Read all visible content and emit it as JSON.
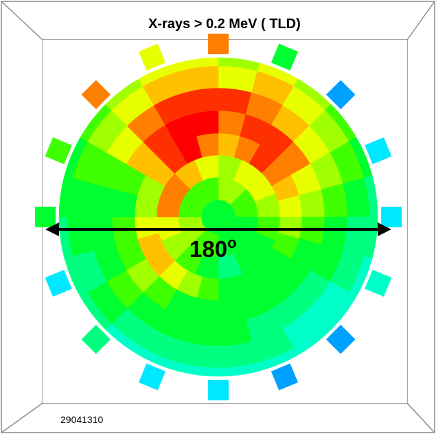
{
  "chart_data": {
    "type": "heatmap",
    "title": "X-rays > 0.2 MeV ( TLD)",
    "annotation_angle": "180",
    "annotation_angle_unit": "o",
    "shot_id": "29041310",
    "palette": [
      "#0000ff",
      "#0050ff",
      "#00a0ff",
      "#00e8ff",
      "#00ffc8",
      "#00ff80",
      "#00ff30",
      "#40ff00",
      "#a0ff00",
      "#e8ff00",
      "#ffc000",
      "#ff8000",
      "#ff3000",
      "#ff0000"
    ],
    "rings": [
      {
        "sectors": 8,
        "values": [
          8,
          7,
          6,
          6,
          7,
          8,
          7,
          7
        ]
      },
      {
        "sectors": 16,
        "values": [
          8,
          9,
          9,
          8,
          7,
          6,
          6,
          5,
          6,
          7,
          8,
          9,
          11,
          11,
          10,
          9
        ]
      },
      {
        "sectors": 24,
        "values": [
          10,
          11,
          12,
          11,
          10,
          9,
          8,
          7,
          6,
          6,
          6,
          6,
          7,
          8,
          9,
          10,
          10,
          9,
          8,
          8,
          10,
          12,
          13,
          11
        ]
      },
      {
        "sectors": 24,
        "values": [
          11,
          12,
          12,
          11,
          9,
          8,
          7,
          6,
          6,
          6,
          6,
          6,
          6,
          6,
          7,
          8,
          7,
          7,
          6,
          7,
          10,
          12,
          13,
          13
        ]
      },
      {
        "sectors": 24,
        "values": [
          12,
          11,
          10,
          9,
          8,
          7,
          6,
          6,
          5,
          5,
          5,
          6,
          6,
          6,
          6,
          7,
          6,
          6,
          6,
          7,
          9,
          11,
          12,
          12
        ]
      },
      {
        "sectors": 24,
        "values": [
          9,
          10,
          9,
          8,
          7,
          6,
          5,
          5,
          4,
          4,
          5,
          5,
          5,
          5,
          5,
          6,
          5,
          6,
          6,
          7,
          8,
          9,
          10,
          10
        ]
      },
      {
        "sectors": 24,
        "values": [
          8,
          9,
          8,
          7,
          6,
          5,
          5,
          4,
          4,
          4,
          4,
          4,
          4,
          4,
          4,
          5,
          5,
          5,
          6,
          6,
          7,
          8,
          9,
          9
        ]
      }
    ],
    "outer_pads": {
      "sectors": 16,
      "values": [
        11,
        6,
        2,
        3,
        3,
        4,
        2,
        2,
        3,
        3,
        5,
        3,
        6,
        7,
        11,
        9
      ]
    }
  }
}
